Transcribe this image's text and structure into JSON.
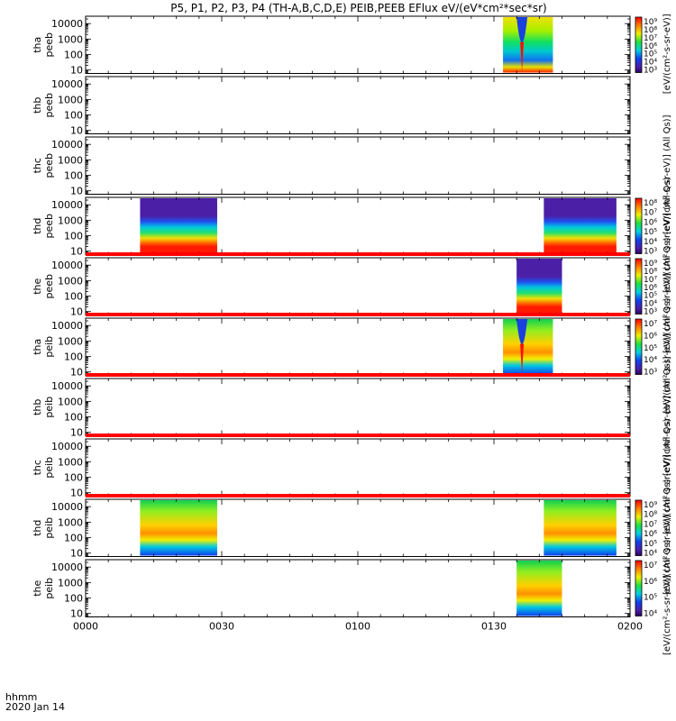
{
  "chart_data": {
    "type": "heatmap",
    "title": "P5, P1, P2, P3, P4 (TH-A,B,C,D,E) PEIB,PEEB EFlux eV/(eV*cm²*sec*sr)",
    "xlabel": "hhmm",
    "date_label": "2020 Jan 14",
    "x_range_minutes": [
      0,
      120
    ],
    "x_ticks": [
      {
        "minute": 0,
        "label": "0000"
      },
      {
        "minute": 30,
        "label": "0030"
      },
      {
        "minute": 60,
        "label": "0100"
      },
      {
        "minute": 90,
        "label": "0130"
      },
      {
        "minute": 120,
        "label": "0200"
      }
    ],
    "y_scale": "log",
    "y_range": [
      6,
      30000
    ],
    "y_ticks": [
      {
        "value": 10,
        "label": "10"
      },
      {
        "value": 100,
        "label": "100"
      },
      {
        "value": 1000,
        "label": "1000"
      },
      {
        "value": 10000,
        "label": "10000"
      }
    ],
    "panels": [
      {
        "probe": "tha",
        "species": "peeb",
        "ylabel_line1": "tha",
        "ylabel_line2": "peeb",
        "segments": [
          {
            "start_min": 92,
            "end_min": 103,
            "kind": "electron",
            "spike": true
          }
        ],
        "fill_band": false,
        "colorbar": {
          "ticks": [
            "10⁹",
            "10⁸",
            "10⁷",
            "10⁶",
            "10⁵",
            "10⁴",
            "10³"
          ],
          "label": "[eV/(cm²-s-sr-eV)]"
        }
      },
      {
        "probe": "thb",
        "species": "peeb",
        "ylabel_line1": "thb",
        "ylabel_line2": "peeb",
        "segments": [],
        "fill_band": false
      },
      {
        "probe": "thc",
        "species": "peeb",
        "ylabel_line1": "thc",
        "ylabel_line2": "peeb",
        "segments": [],
        "fill_band": false,
        "colorbar": {
          "ticks": [],
          "label": "[eV/(cm²-s-sr-eV)] (All Qs)]"
        }
      },
      {
        "probe": "thd",
        "species": "peeb",
        "ylabel_line1": "thd",
        "ylabel_line2": "peeb",
        "segments": [
          {
            "start_min": 12,
            "end_min": 29,
            "kind": "electron-low"
          },
          {
            "start_min": 101,
            "end_min": 117,
            "kind": "electron-low"
          }
        ],
        "fill_band": false,
        "colorbar": {
          "ticks": [
            "10⁸",
            "10⁷",
            "10⁶",
            "10⁵",
            "10⁴",
            "10³"
          ],
          "label": "[eV/(cm²-s-sr-eV)] (All Qs)"
        }
      },
      {
        "probe": "the",
        "species": "peeb",
        "ylabel_line1": "the",
        "ylabel_line2": "peeb",
        "segments": [
          {
            "start_min": 95,
            "end_min": 105,
            "kind": "electron-low"
          }
        ],
        "fill_band": true,
        "colorbar": {
          "ticks": [
            "10⁹",
            "10⁸",
            "10⁷",
            "10⁶",
            "10⁵",
            "10⁴",
            "10³"
          ],
          "label": "[eV/(cm²-s-sr-eV)] (All Qs)"
        }
      },
      {
        "probe": "tha",
        "species": "peib",
        "ylabel_line1": "tha",
        "ylabel_line2": "peib",
        "segments": [
          {
            "start_min": 92,
            "end_min": 103,
            "kind": "ion",
            "spike": true
          }
        ],
        "fill_band": true,
        "colorbar": {
          "ticks": [
            "10⁷",
            "10⁶",
            "10⁵",
            "10⁴",
            "10³"
          ],
          "label": "[eV/(cm²-s-sr-eV)] (All Qs)"
        }
      },
      {
        "probe": "thb",
        "species": "peib",
        "ylabel_line1": "thb",
        "ylabel_line2": "peib",
        "segments": [],
        "fill_band": true,
        "colorbar": {
          "ticks": [],
          "label": "[eV/(cm²-s-sr-eV)] (All Qs)]"
        }
      },
      {
        "probe": "thc",
        "species": "peib",
        "ylabel_line1": "thc",
        "ylabel_line2": "peib",
        "segments": [],
        "fill_band": true,
        "colorbar": {
          "ticks": [],
          "label": "[eV/(cm²-s-sr-eV)] (All Qs)"
        }
      },
      {
        "probe": "thd",
        "species": "peib",
        "ylabel_line1": "thd",
        "ylabel_line2": "peib",
        "segments": [
          {
            "start_min": 12,
            "end_min": 29,
            "kind": "ion"
          },
          {
            "start_min": 101,
            "end_min": 117,
            "kind": "ion"
          }
        ],
        "fill_band": true,
        "colorbar": {
          "ticks": [
            "10⁹",
            "10⁸",
            "10⁷",
            "10⁶",
            "10⁵",
            "10⁴"
          ],
          "label": "[eV/(cm²-s-sr-eV)] (All Qs)"
        }
      },
      {
        "probe": "the",
        "species": "peib",
        "ylabel_line1": "the",
        "ylabel_line2": "peib",
        "segments": [
          {
            "start_min": 95,
            "end_min": 105,
            "kind": "ion"
          }
        ],
        "fill_band": false,
        "colorbar": {
          "ticks": [
            "10⁷",
            "10⁶",
            "10⁵",
            "10⁴"
          ],
          "label": "[eV/(cm²-s-sr-eV)] (All Qs)"
        }
      }
    ]
  }
}
